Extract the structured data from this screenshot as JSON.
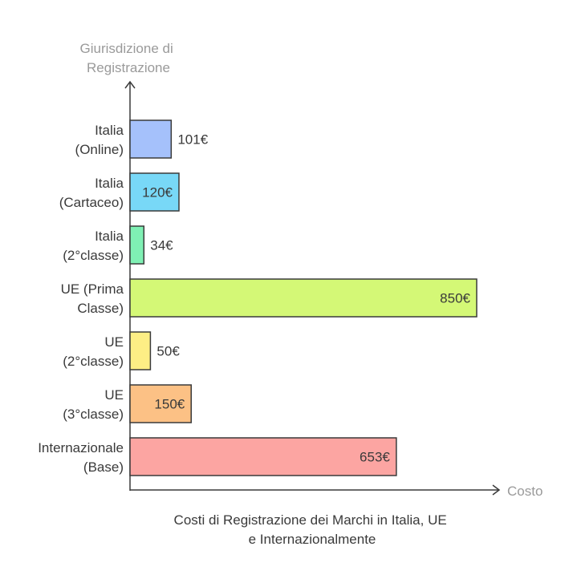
{
  "chart_data": {
    "type": "bar",
    "orientation": "horizontal",
    "title": "Costi di Registrazione dei Marchi in Italia, UE e Internazionalmente",
    "title_lines": [
      "Costi di Registrazione dei Marchi in Italia, UE",
      "e Internazionalmente"
    ],
    "ylabel_lines": [
      "Giurisdizione di",
      "Registrazione"
    ],
    "xlabel": "Costo",
    "unit": "€",
    "xlim": [
      0,
      850
    ],
    "grid": false,
    "categories": [
      {
        "lines": [
          "Italia",
          "(Online)"
        ],
        "value": 101,
        "label": "101€",
        "color": "#a5c1fb",
        "label_inside": false
      },
      {
        "lines": [
          "Italia",
          "(Cartaceo)"
        ],
        "value": 120,
        "label": "120€",
        "color": "#78d8f7",
        "label_inside": true
      },
      {
        "lines": [
          "Italia",
          "(2°classe)"
        ],
        "value": 34,
        "label": "34€",
        "color": "#7ff0b4",
        "label_inside": false
      },
      {
        "lines": [
          "UE (Prima",
          "Classe)"
        ],
        "value": 850,
        "label": "850€",
        "color": "#d4f876",
        "label_inside": true
      },
      {
        "lines": [
          "UE",
          "(2°classe)"
        ],
        "value": 50,
        "label": "50€",
        "color": "#fdee85",
        "label_inside": false
      },
      {
        "lines": [
          "UE",
          "(3°classe)"
        ],
        "value": 150,
        "label": "150€",
        "color": "#fcc185",
        "label_inside": true
      },
      {
        "lines": [
          "Internazionale",
          "(Base)"
        ],
        "value": 653,
        "label": "653€",
        "color": "#fca5a2",
        "label_inside": true
      }
    ]
  }
}
